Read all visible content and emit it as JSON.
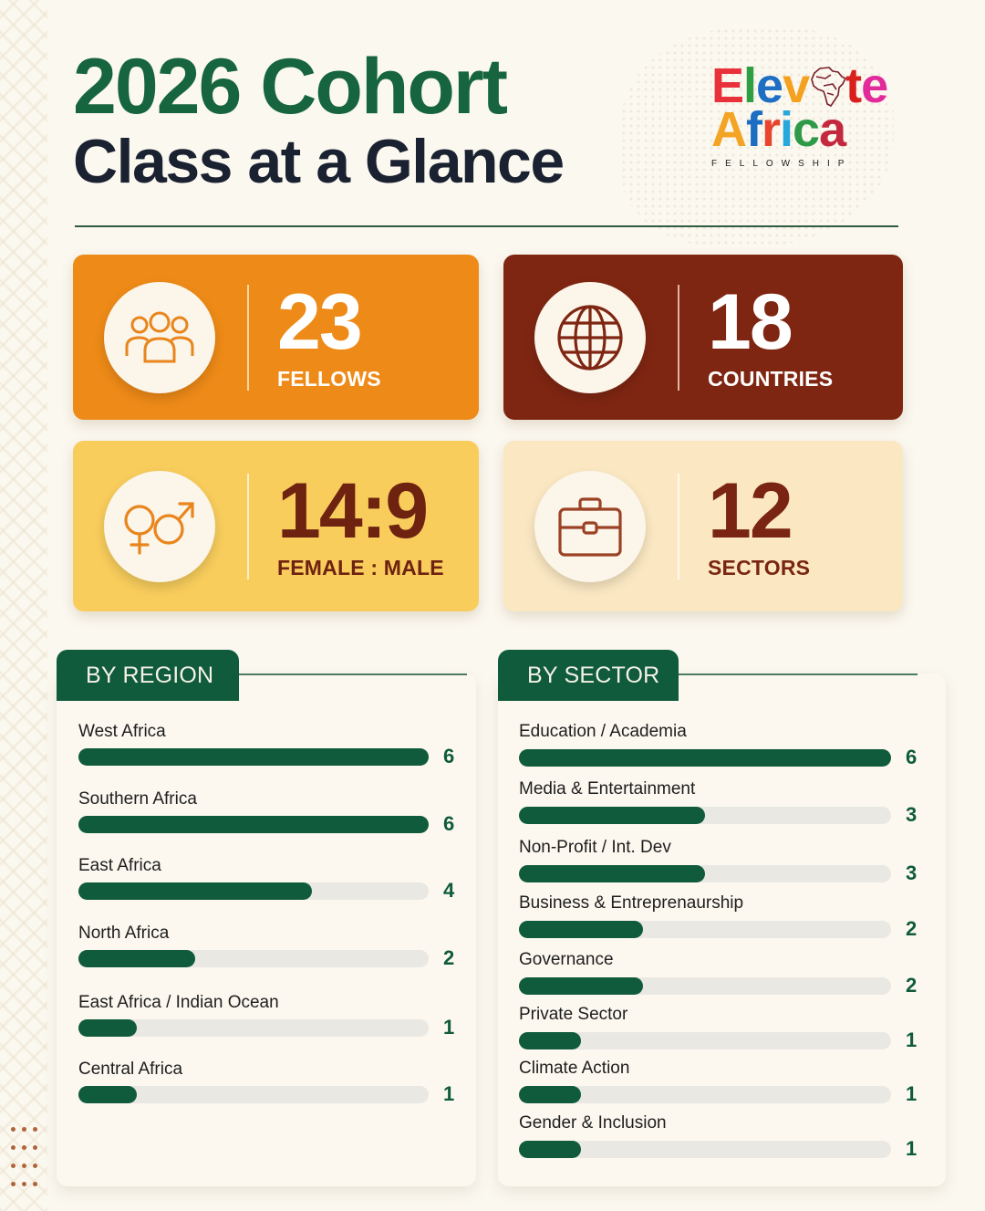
{
  "header": {
    "title_line1": "2026 Cohort",
    "title_line2": "Class at a Glance"
  },
  "logo": {
    "word1_letters": [
      {
        "ch": "E",
        "color": "#e8313a"
      },
      {
        "ch": "l",
        "color": "#2ea043"
      },
      {
        "ch": "e",
        "color": "#1e6fc4"
      },
      {
        "ch": "v",
        "color": "#f4a11f"
      },
      {
        "ch": "t",
        "color": "#d9201e"
      },
      {
        "ch": "e",
        "color": "#e22a9a"
      }
    ],
    "word2_letters": [
      {
        "ch": "A",
        "color": "#f4a424"
      },
      {
        "ch": "f",
        "color": "#1d6dc2"
      },
      {
        "ch": "r",
        "color": "#e8452e"
      },
      {
        "ch": "i",
        "color": "#27a8dc"
      },
      {
        "ch": "c",
        "color": "#2e9a48"
      },
      {
        "ch": "a",
        "color": "#c4283e"
      }
    ],
    "subtitle": "FELLOWSHIP",
    "map_color": "#7a1f2b"
  },
  "stats": [
    {
      "value": "23",
      "label": "FELLOWS",
      "icon": "people-group-icon",
      "bg": "#ee8a17"
    },
    {
      "value": "18",
      "label": "COUNTRIES",
      "icon": "globe-icon",
      "bg": "#7f2612"
    },
    {
      "value": "14:9",
      "label": "FEMALE : MALE",
      "icon": "gender-icon",
      "bg": "#f8cd5c"
    },
    {
      "value": "12",
      "label": "SECTORS",
      "icon": "briefcase-icon",
      "bg": "#fbe8c3"
    }
  ],
  "colors": {
    "accent_green": "#0f5b3b",
    "title_green": "#17653f",
    "title_dark": "#1a2130",
    "track": "#eae8e3"
  },
  "chart_data": [
    {
      "type": "bar",
      "orientation": "horizontal",
      "title": "BY REGION",
      "categories": [
        "West Africa",
        "Southern Africa",
        "East Africa",
        "North Africa",
        "East Africa / Indian Ocean",
        "Central Africa"
      ],
      "values": [
        6,
        6,
        4,
        2,
        1,
        1
      ],
      "xlim": [
        0,
        6
      ],
      "data_labels": true,
      "grid": false
    },
    {
      "type": "bar",
      "orientation": "horizontal",
      "title": "BY SECTOR",
      "categories": [
        "Education / Academia",
        "Media & Entertainment",
        "Non-Profit / Int. Dev",
        "Business & Entreprenaurship",
        "Governance",
        "Private Sector",
        "Climate Action",
        "Gender & Inclusion"
      ],
      "values": [
        6,
        3,
        3,
        2,
        2,
        1,
        1,
        1
      ],
      "xlim": [
        0,
        6
      ],
      "data_labels": true,
      "grid": false
    }
  ]
}
